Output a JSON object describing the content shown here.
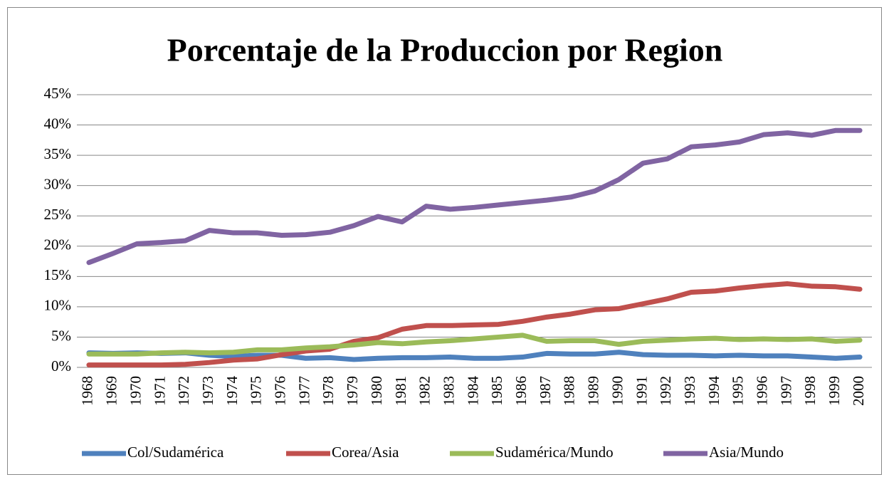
{
  "chart_data": {
    "type": "line",
    "title": "Porcentaje de la Produccion por Region",
    "categories": [
      "1968",
      "1969",
      "1970",
      "1971",
      "1972",
      "1973",
      "1974",
      "1975",
      "1976",
      "1977",
      "1978",
      "1979",
      "1980",
      "1981",
      "1982",
      "1983",
      "1984",
      "1985",
      "1986",
      "1987",
      "1988",
      "1989",
      "1990",
      "1991",
      "1992",
      "1993",
      "1994",
      "1995",
      "1996",
      "1997",
      "1998",
      "1999",
      "2000"
    ],
    "series": [
      {
        "name": "Col/Sudamérica",
        "color": "#4f81bd",
        "values": [
          2.4,
          2.3,
          2.4,
          2.3,
          2.4,
          2.0,
          1.8,
          2.0,
          2.0,
          1.5,
          1.6,
          1.3,
          1.5,
          1.6,
          1.6,
          1.7,
          1.5,
          1.5,
          1.7,
          2.3,
          2.2,
          2.2,
          2.5,
          2.1,
          2.0,
          2.0,
          1.9,
          2.0,
          1.9,
          1.9,
          1.7,
          1.5,
          1.7
        ]
      },
      {
        "name": "Corea/Asia",
        "color": "#c0504d",
        "values": [
          0.4,
          0.4,
          0.4,
          0.4,
          0.5,
          0.8,
          1.2,
          1.4,
          2.1,
          2.7,
          3.0,
          4.3,
          4.9,
          6.3,
          6.9,
          6.9,
          7.0,
          7.1,
          7.6,
          8.3,
          8.8,
          9.5,
          9.7,
          10.5,
          11.3,
          12.4,
          12.6,
          13.1,
          13.5,
          13.8,
          13.4,
          13.3,
          12.9
        ]
      },
      {
        "name": "Sudamérica/Mundo",
        "color": "#9bbb59",
        "values": [
          2.2,
          2.2,
          2.2,
          2.4,
          2.5,
          2.4,
          2.5,
          2.9,
          2.9,
          3.2,
          3.4,
          3.7,
          4.1,
          3.9,
          4.2,
          4.4,
          4.7,
          5.0,
          5.3,
          4.3,
          4.4,
          4.4,
          3.8,
          4.3,
          4.5,
          4.7,
          4.8,
          4.6,
          4.7,
          4.6,
          4.7,
          4.3,
          4.5
        ]
      },
      {
        "name": "Asia/Mundo",
        "color": "#8064a2",
        "values": [
          17.3,
          18.8,
          20.4,
          20.6,
          20.9,
          22.6,
          22.2,
          22.2,
          21.8,
          21.9,
          22.3,
          23.4,
          24.9,
          24.0,
          26.6,
          26.1,
          26.4,
          26.8,
          27.2,
          27.6,
          28.1,
          29.1,
          31.0,
          33.7,
          34.4,
          36.4,
          36.7,
          37.2,
          38.4,
          38.7,
          38.3,
          39.1,
          39.1
        ]
      }
    ],
    "ylim": [
      0,
      45
    ],
    "yticks": [
      {
        "value": 0,
        "label": "0%"
      },
      {
        "value": 5,
        "label": "5%"
      },
      {
        "value": 10,
        "label": "10%"
      },
      {
        "value": 15,
        "label": "15%"
      },
      {
        "value": 20,
        "label": "20%"
      },
      {
        "value": 25,
        "label": "25%"
      },
      {
        "value": 30,
        "label": "30%"
      },
      {
        "value": 35,
        "label": "35%"
      },
      {
        "value": 40,
        "label": "40%"
      },
      {
        "value": 45,
        "label": "45%"
      }
    ],
    "grid": true,
    "legend": "bottom"
  }
}
